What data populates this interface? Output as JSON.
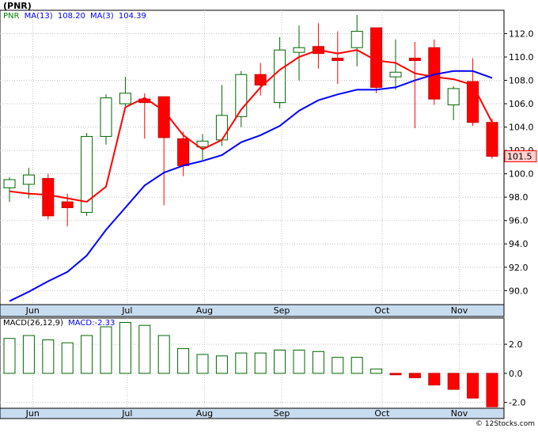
{
  "header": {
    "title": "(PNR)",
    "legend": {
      "ticker": "PNR",
      "ma13_label": "MA(13)",
      "ma13_value": "108.20",
      "ma3_label": "MA(3)",
      "ma3_value": "104.39"
    },
    "last_price": "101.5"
  },
  "macd_legend": {
    "label": "MACD(26,12,9)",
    "value_label": "MACD:-2.33"
  },
  "credit": "© 12Stocks.com",
  "colors": {
    "up": "#006600",
    "down": "#ff0000",
    "ma13": "#0000ff",
    "ma3": "#ff0000",
    "ticker": "#008000",
    "grid": "#c0c0c0",
    "axis_bg": "#c8dcf0"
  },
  "chart_data": [
    {
      "type": "candlestick",
      "y_ticks": [
        "90.0",
        "92.0",
        "94.0",
        "96.0",
        "98.0",
        "100.0",
        "102.0",
        "104.0",
        "106.0",
        "108.0",
        "110.0",
        "112.0"
      ],
      "ylim": [
        88.8,
        114.0
      ],
      "x_labels": [
        "Jun",
        "Jul",
        "Aug",
        "Sep",
        "Oct",
        "Nov"
      ],
      "candles": [
        {
          "o": 98.8,
          "h": 99.7,
          "l": 97.6,
          "c": 99.5
        },
        {
          "o": 99.1,
          "h": 100.5,
          "l": 97.9,
          "c": 99.9
        },
        {
          "o": 99.6,
          "h": 100.0,
          "l": 96.1,
          "c": 96.4
        },
        {
          "o": 97.6,
          "h": 98.3,
          "l": 95.5,
          "c": 97.1
        },
        {
          "o": 96.7,
          "h": 103.5,
          "l": 96.4,
          "c": 103.2
        },
        {
          "o": 103.2,
          "h": 106.8,
          "l": 102.5,
          "c": 106.5
        },
        {
          "o": 106.0,
          "h": 108.3,
          "l": 105.8,
          "c": 106.9
        },
        {
          "o": 106.4,
          "h": 106.9,
          "l": 103.0,
          "c": 106.1
        },
        {
          "o": 106.6,
          "h": 106.6,
          "l": 97.3,
          "c": 103.1
        },
        {
          "o": 103.0,
          "h": 103.6,
          "l": 99.8,
          "c": 100.7
        },
        {
          "o": 102.3,
          "h": 103.4,
          "l": 101.2,
          "c": 102.8
        },
        {
          "o": 102.9,
          "h": 107.6,
          "l": 102.4,
          "c": 105.0
        },
        {
          "o": 104.9,
          "h": 108.8,
          "l": 104.0,
          "c": 108.5
        },
        {
          "o": 108.5,
          "h": 109.5,
          "l": 106.7,
          "c": 107.6
        },
        {
          "o": 106.1,
          "h": 111.7,
          "l": 105.6,
          "c": 110.6
        },
        {
          "o": 110.4,
          "h": 112.7,
          "l": 108.0,
          "c": 110.8
        },
        {
          "o": 110.9,
          "h": 112.9,
          "l": 109.0,
          "c": 110.3
        },
        {
          "o": 109.9,
          "h": 112.2,
          "l": 107.7,
          "c": 109.7
        },
        {
          "o": 110.8,
          "h": 113.6,
          "l": 109.2,
          "c": 112.2
        },
        {
          "o": 112.5,
          "h": 112.5,
          "l": 106.9,
          "c": 107.4
        },
        {
          "o": 108.3,
          "h": 111.5,
          "l": 107.2,
          "c": 108.7
        },
        {
          "o": 109.9,
          "h": 111.3,
          "l": 103.9,
          "c": 109.7
        },
        {
          "o": 110.8,
          "h": 111.5,
          "l": 105.9,
          "c": 106.4
        },
        {
          "o": 105.9,
          "h": 107.5,
          "l": 104.6,
          "c": 107.3
        },
        {
          "o": 107.9,
          "h": 109.9,
          "l": 104.1,
          "c": 104.4
        },
        {
          "o": 104.4,
          "h": 104.7,
          "l": 101.3,
          "c": 101.5
        }
      ],
      "ma13": [
        89.1,
        89.9,
        90.8,
        91.6,
        93.0,
        95.2,
        97.1,
        99.0,
        100.1,
        100.7,
        101.1,
        101.6,
        102.7,
        103.3,
        104.1,
        105.4,
        106.3,
        106.8,
        107.2,
        107.2,
        107.4,
        108.0,
        108.5,
        108.8,
        108.8,
        108.2
      ],
      "ma3": [
        98.5,
        98.3,
        98.2,
        97.9,
        97.6,
        98.9,
        105.7,
        106.5,
        105.4,
        103.3,
        102.1,
        102.9,
        105.5,
        107.4,
        108.9,
        110.0,
        110.6,
        110.3,
        110.6,
        109.7,
        109.5,
        108.6,
        108.3,
        108.1,
        107.6,
        104.4
      ]
    },
    {
      "type": "bar",
      "title": "MACD(26,12,9)",
      "y_ticks": [
        "2.0",
        "0.0",
        "-2.0"
      ],
      "ylim": [
        -2.4,
        3.8
      ],
      "x_labels": [
        "Jun",
        "Jul",
        "Aug",
        "Sep",
        "Oct",
        "Nov"
      ],
      "values": [
        2.4,
        2.6,
        2.3,
        2.1,
        2.6,
        3.2,
        3.5,
        3.3,
        2.6,
        1.7,
        1.3,
        1.2,
        1.4,
        1.4,
        1.6,
        1.6,
        1.5,
        1.1,
        1.1,
        0.3,
        -0.1,
        -0.3,
        -0.8,
        -1.1,
        -1.7,
        -2.3
      ]
    }
  ]
}
